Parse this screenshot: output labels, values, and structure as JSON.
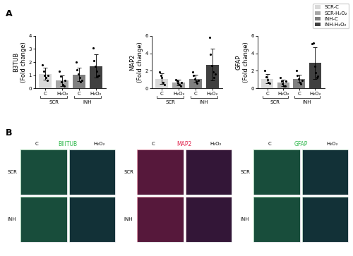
{
  "panel_labels": [
    "A",
    "B"
  ],
  "legend": [
    {
      "name": "SCR-C",
      "color": "#d9d9d9"
    },
    {
      "name": "SCR-H₂O₂",
      "color": "#a6a6a6"
    },
    {
      "name": "INH-C",
      "color": "#7f7f7f"
    },
    {
      "name": "INH-H₂O₂",
      "color": "#404040"
    }
  ],
  "chart_data": [
    {
      "type": "bar",
      "y_label": "B3TUB\n(Fold change)",
      "categories": [
        "C",
        "H₂O₂",
        "C",
        "H₂O₂"
      ],
      "groups": [
        "SCR",
        "SCR",
        "INH",
        "INH"
      ],
      "values": [
        1.1,
        0.6,
        1.05,
        1.7
      ],
      "errors": [
        0.45,
        0.4,
        0.5,
        0.9
      ],
      "points": [
        [
          1.8,
          1.3,
          1.0,
          0.8,
          0.6,
          1.0
        ],
        [
          1.3,
          0.9,
          0.5,
          0.3,
          0.2,
          0.6
        ],
        [
          2.0,
          1.4,
          1.1,
          0.8,
          0.5,
          0.6
        ],
        [
          3.1,
          2.1,
          1.7,
          1.3,
          0.9,
          1.0
        ]
      ],
      "colors": [
        "#d9d9d9",
        "#a6a6a6",
        "#7f7f7f",
        "#404040"
      ],
      "ylim": [
        0,
        4
      ],
      "yticks": [
        0,
        1,
        2,
        3,
        4
      ]
    },
    {
      "type": "bar",
      "y_label": "MAP2\n(Fold change)",
      "categories": [
        "C",
        "H₂O₂",
        "C",
        "H₂O₂"
      ],
      "groups": [
        "SCR",
        "SCR",
        "INH",
        "INH"
      ],
      "values": [
        1.1,
        0.65,
        1.1,
        2.7
      ],
      "errors": [
        0.6,
        0.3,
        0.45,
        1.8
      ],
      "points": [
        [
          1.9,
          1.5,
          1.2,
          0.7,
          0.4
        ],
        [
          1.0,
          0.8,
          0.6,
          0.4,
          0.3,
          0.7
        ],
        [
          1.9,
          1.5,
          1.1,
          0.8,
          0.6,
          0.9
        ],
        [
          5.8,
          3.9,
          2.6,
          1.9,
          1.2,
          1.6
        ]
      ],
      "colors": [
        "#d9d9d9",
        "#a6a6a6",
        "#7f7f7f",
        "#404040"
      ],
      "ylim": [
        0,
        6
      ],
      "yticks": [
        0,
        2,
        4,
        6
      ]
    },
    {
      "type": "bar",
      "y_label": "GFAP\n(Fold change)",
      "categories": [
        "C",
        "H₂O₂",
        "C",
        "H₂O₂"
      ],
      "groups": [
        "SCR",
        "SCR",
        "INH",
        "INH"
      ],
      "values": [
        1.1,
        0.65,
        1.1,
        2.9
      ],
      "errors": [
        0.55,
        0.35,
        0.45,
        1.8
      ],
      "points": [
        [
          2.0,
          1.3,
          1.0,
          0.7,
          0.6
        ],
        [
          1.2,
          0.8,
          0.5,
          0.3,
          0.3,
          0.8
        ],
        [
          2.0,
          1.5,
          1.1,
          0.7,
          0.5,
          0.9
        ],
        [
          5.1,
          5.2,
          2.5,
          1.8,
          1.2,
          1.4
        ]
      ],
      "colors": [
        "#d9d9d9",
        "#a6a6a6",
        "#7f7f7f",
        "#404040"
      ],
      "ylim": [
        0,
        6
      ],
      "yticks": [
        0,
        2,
        4,
        6
      ]
    }
  ],
  "images": {
    "columns": [
      "C",
      "H₂O₂"
    ],
    "rows": [
      "SCR",
      "INH"
    ],
    "panels": [
      {
        "title": "BIIITUB",
        "color": "#2db84a"
      },
      {
        "title": "MAP2",
        "color": "#e0204a"
      },
      {
        "title": "GFAP",
        "color": "#2db84a"
      }
    ]
  }
}
